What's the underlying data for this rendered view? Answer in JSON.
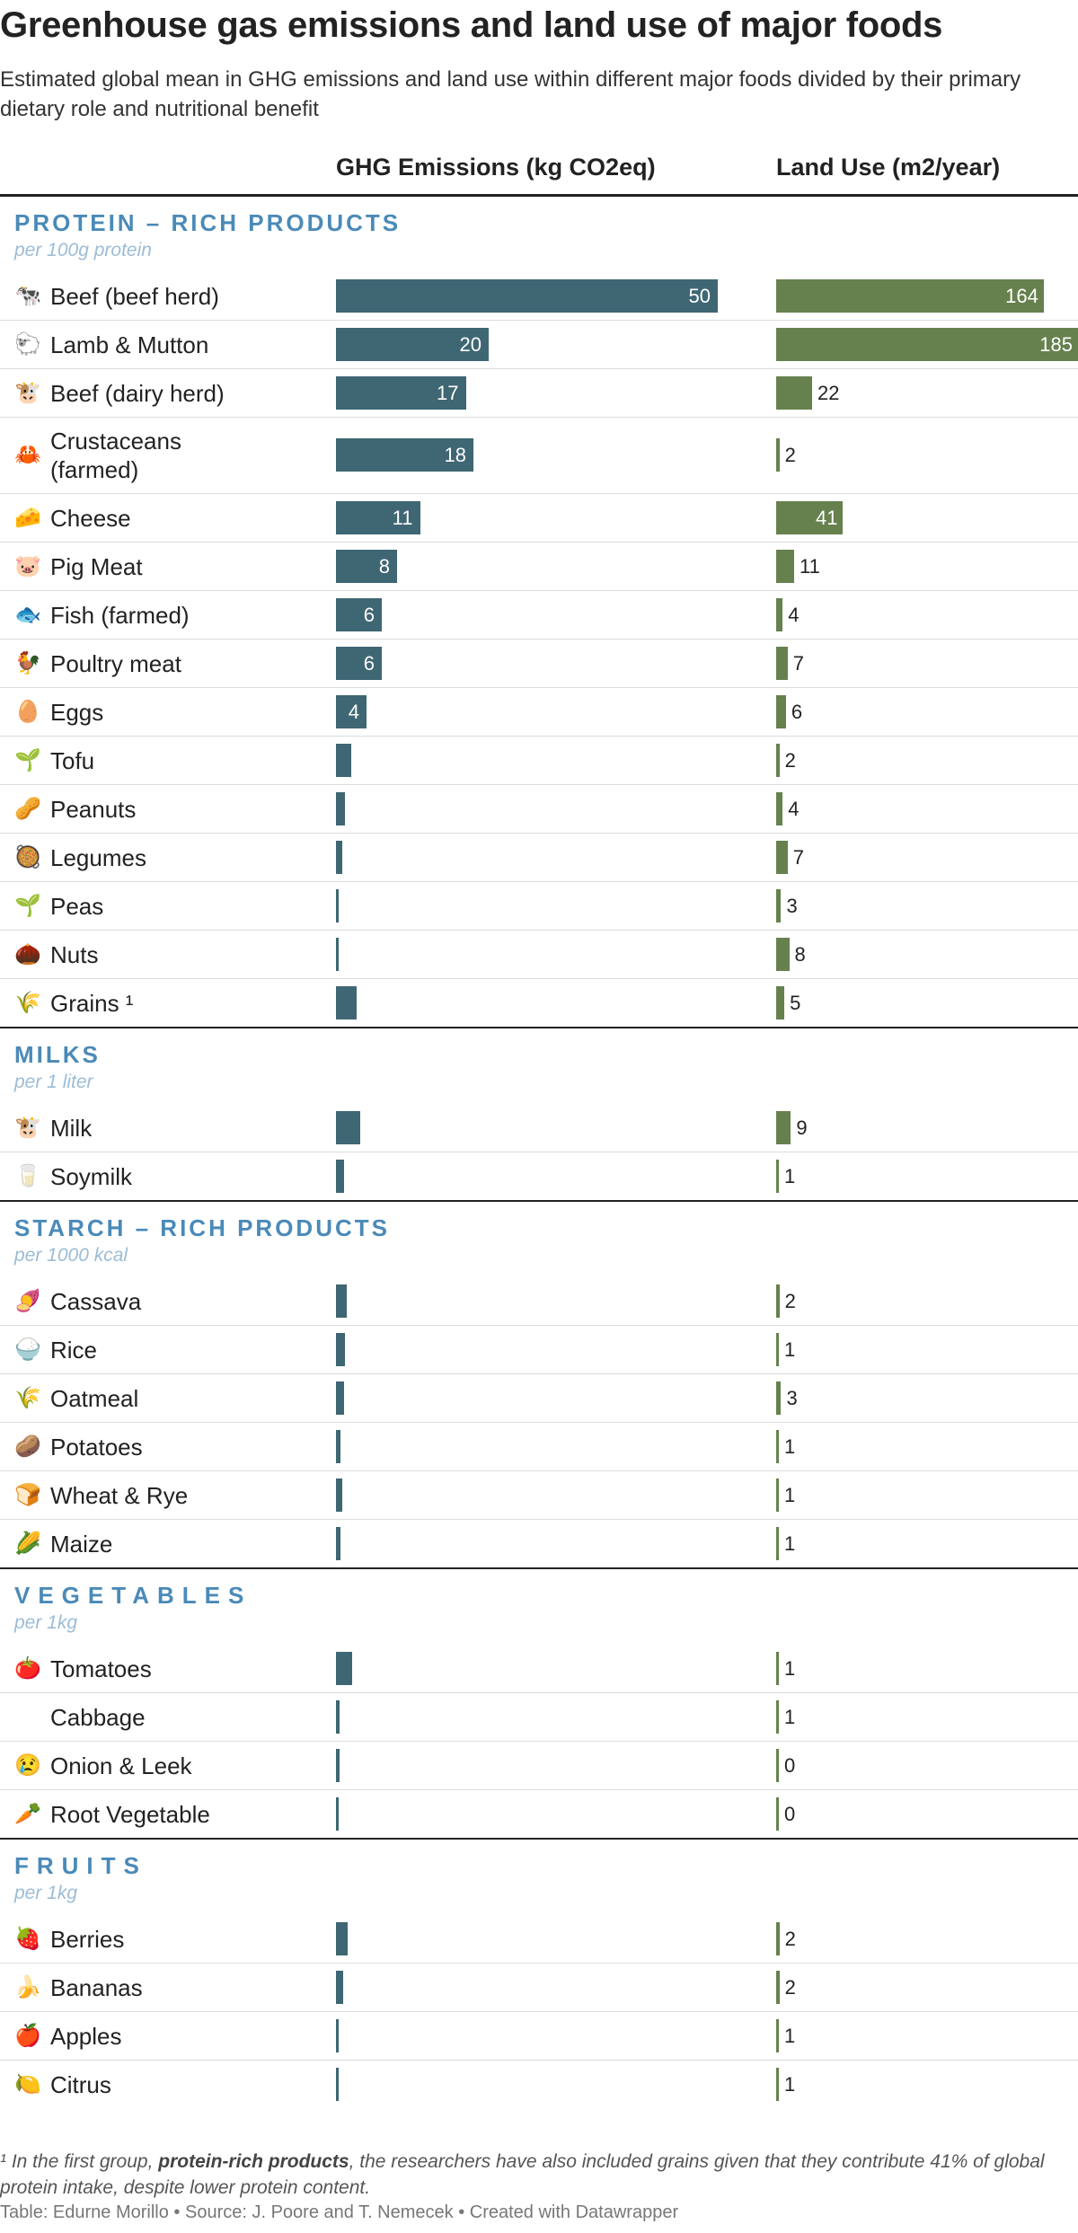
{
  "header": {
    "title": "Greenhouse gas emissions and land use of major foods",
    "subtitle": "Estimated global mean in GHG emissions and land use within different major foods divided by their primary dietary role and nutritional benefit",
    "col_ghg": "GHG Emissions (kg CO2eq)",
    "col_land": "Land Use (m2/year)"
  },
  "colors": {
    "ghg_bar": "#3f6673",
    "land_bar": "#66814e",
    "group_title": "#4a8ab8",
    "group_unit": "#9cbcd6"
  },
  "chart_data": {
    "type": "table",
    "columns": [
      "GHG Emissions (kg CO2eq)",
      "Land Use (m2/year)"
    ],
    "groups": [
      {
        "name": "PROTEIN – RICH PRODUCTS",
        "unit": "per 100g protein",
        "rows": [
          {
            "label": "Beef (beef herd)",
            "icon": "cow-face-icon",
            "emoji": "🐄",
            "ghg": 50,
            "ghg_label": "50",
            "land": 164,
            "land_label": "164"
          },
          {
            "label": "Lamb & Mutton",
            "icon": "sheep-icon",
            "emoji": "🐑",
            "ghg": 20,
            "ghg_label": "20",
            "land": 185,
            "land_label": "185"
          },
          {
            "label": "Beef (dairy herd)",
            "icon": "cow-face-icon",
            "emoji": "🐮",
            "ghg": 17,
            "ghg_label": "17",
            "land": 22,
            "land_label": "22"
          },
          {
            "label": "Crustaceans (farmed)",
            "icon": "crab-icon",
            "emoji": "🦀",
            "ghg": 18,
            "ghg_label": "18",
            "land": 2,
            "land_label": "2"
          },
          {
            "label": "Cheese",
            "icon": "cheese-icon",
            "emoji": "🧀",
            "ghg": 11,
            "ghg_label": "11",
            "land": 41,
            "land_label": "41"
          },
          {
            "label": "Pig Meat",
            "icon": "pig-face-icon",
            "emoji": "🐷",
            "ghg": 8,
            "ghg_label": "8",
            "land": 11,
            "land_label": "11"
          },
          {
            "label": "Fish (farmed)",
            "icon": "fish-icon",
            "emoji": "🐟",
            "ghg": 6,
            "ghg_label": "6",
            "land": 4,
            "land_label": "4"
          },
          {
            "label": "Poultry meat",
            "icon": "rooster-icon",
            "emoji": "🐓",
            "ghg": 6,
            "ghg_label": "6",
            "land": 7,
            "land_label": "7"
          },
          {
            "label": "Eggs",
            "icon": "egg-icon",
            "emoji": "🥚",
            "ghg": 4,
            "ghg_label": "4",
            "land": 6,
            "land_label": "6"
          },
          {
            "label": "Tofu",
            "icon": "seedling-icon",
            "emoji": "🌱",
            "ghg": 2,
            "ghg_label": "",
            "land": 2,
            "land_label": "2"
          },
          {
            "label": "Peanuts",
            "icon": "peanuts-icon",
            "emoji": "🥜",
            "ghg": 1.2,
            "ghg_label": "",
            "land": 4,
            "land_label": "4"
          },
          {
            "label": "Legumes",
            "icon": "bowl-icon",
            "emoji": "🥘",
            "ghg": 0.8,
            "ghg_label": "",
            "land": 7,
            "land_label": "7"
          },
          {
            "label": "Peas",
            "icon": "seedling-icon",
            "emoji": "🌱",
            "ghg": 0.4,
            "ghg_label": "",
            "land": 3,
            "land_label": "3"
          },
          {
            "label": "Nuts",
            "icon": "chestnut-icon",
            "emoji": "🌰",
            "ghg": 0.1,
            "ghg_label": "",
            "land": 8,
            "land_label": "8"
          },
          {
            "label": "Grains ¹",
            "icon": "grain-icon",
            "emoji": "🌾",
            "ghg": 2.7,
            "ghg_label": "",
            "land": 5,
            "land_label": "5"
          }
        ]
      },
      {
        "name": "MILKS",
        "unit": "per 1 liter",
        "rows": [
          {
            "label": "Milk",
            "icon": "cow-face-icon",
            "emoji": "🐮",
            "ghg": 3.2,
            "ghg_label": "",
            "land": 9,
            "land_label": "9"
          },
          {
            "label": "Soymilk",
            "icon": "milk-glass-icon",
            "emoji": "🥛",
            "ghg": 1,
            "ghg_label": "",
            "land": 1,
            "land_label": "1"
          }
        ]
      },
      {
        "name": "STARCH – RICH PRODUCTS",
        "unit": "per 1000 kcal",
        "rows": [
          {
            "label": "Cassava",
            "icon": "cassava-icon",
            "emoji": "🍠",
            "ghg": 1.4,
            "ghg_label": "",
            "land": 2,
            "land_label": "2"
          },
          {
            "label": "Rice",
            "icon": "rice-icon",
            "emoji": "🍚",
            "ghg": 1.2,
            "ghg_label": "",
            "land": 1,
            "land_label": "1"
          },
          {
            "label": "Oatmeal",
            "icon": "grain-icon",
            "emoji": "🌾",
            "ghg": 1,
            "ghg_label": "",
            "land": 3,
            "land_label": "3"
          },
          {
            "label": "Potatoes",
            "icon": "potato-icon",
            "emoji": "🥔",
            "ghg": 0.6,
            "ghg_label": "",
            "land": 1,
            "land_label": "1"
          },
          {
            "label": "Wheat & Rye",
            "icon": "bread-icon",
            "emoji": "🍞",
            "ghg": 0.8,
            "ghg_label": "",
            "land": 1,
            "land_label": "1"
          },
          {
            "label": "Maize",
            "icon": "corn-icon",
            "emoji": "🌽",
            "ghg": 0.6,
            "ghg_label": "",
            "land": 1,
            "land_label": "1"
          }
        ]
      },
      {
        "name": "VEGETABLES",
        "unit": "per 1kg",
        "rows": [
          {
            "label": "Tomatoes",
            "icon": "tomato-icon",
            "emoji": "🍅",
            "ghg": 2.1,
            "ghg_label": "",
            "land": 1,
            "land_label": "1"
          },
          {
            "label": "Cabbage",
            "icon": "",
            "emoji": "",
            "ghg": 0.5,
            "ghg_label": "",
            "land": 1,
            "land_label": "1"
          },
          {
            "label": "Onion & Leek",
            "icon": "crying-face-icon",
            "emoji": "😢",
            "ghg": 0.5,
            "ghg_label": "",
            "land": 0,
            "land_label": "0"
          },
          {
            "label": "Root Vegetable",
            "icon": "carrot-icon",
            "emoji": "🥕",
            "ghg": 0.4,
            "ghg_label": "",
            "land": 0,
            "land_label": "0"
          }
        ]
      },
      {
        "name": "FRUITS",
        "unit": "per 1kg",
        "rows": [
          {
            "label": "Berries",
            "icon": "strawberry-icon",
            "emoji": "🍓",
            "ghg": 1.5,
            "ghg_label": "",
            "land": 2,
            "land_label": "2"
          },
          {
            "label": "Bananas",
            "icon": "banana-icon",
            "emoji": "🍌",
            "ghg": 0.9,
            "ghg_label": "",
            "land": 2,
            "land_label": "2"
          },
          {
            "label": "Apples",
            "icon": "apple-icon",
            "emoji": "🍎",
            "ghg": 0.4,
            "ghg_label": "",
            "land": 1,
            "land_label": "1"
          },
          {
            "label": "Citrus",
            "icon": "lemon-icon",
            "emoji": "🍋",
            "ghg": 0.4,
            "ghg_label": "",
            "land": 1,
            "land_label": "1"
          }
        ]
      }
    ]
  },
  "footnote": {
    "prefix": "¹ In the first group, ",
    "bold": "protein-rich products",
    "suffix": ", the researchers have also included grains given that they contribute 41% of global protein intake, despite lower protein content."
  },
  "credit": "Table: Edurne Morillo • Source: J. Poore and T. Nemecek • Created with Datawrapper"
}
